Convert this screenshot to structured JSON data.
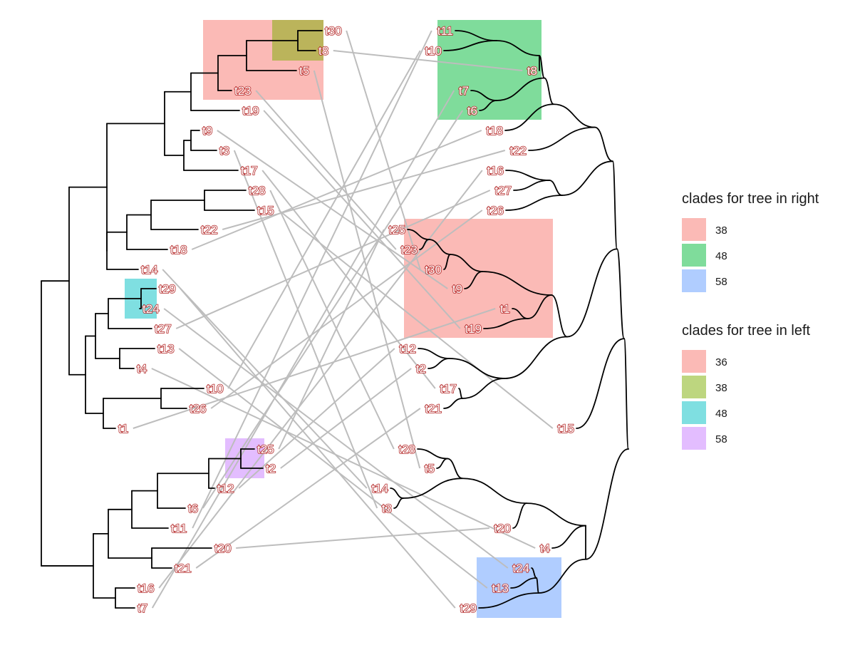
{
  "colors": {
    "c36_left": "#f8766d",
    "c38_left": "#7cae00",
    "c48_left": "#00bfc4",
    "c58_left": "#c77cff",
    "c38_right": "#f8766d",
    "c48_right": "#00ba38",
    "c58_right": "#619cff",
    "link": "#bdbdbd"
  },
  "legend_right": {
    "title": "clades for tree in right",
    "items": [
      {
        "label": "38",
        "color": "#f8766d"
      },
      {
        "label": "48",
        "color": "#00ba38"
      },
      {
        "label": "58",
        "color": "#619cff"
      }
    ]
  },
  "legend_left": {
    "title": "clades for tree in left",
    "items": [
      {
        "label": "36",
        "color": "#f8766d"
      },
      {
        "label": "38",
        "color": "#7cae00"
      },
      {
        "label": "48",
        "color": "#00bfc4"
      },
      {
        "label": "58",
        "color": "#c77cff"
      }
    ]
  },
  "left_tips": [
    "t30",
    "t8",
    "t5",
    "t23",
    "t19",
    "t9",
    "t3",
    "t17",
    "t28",
    "t15",
    "t22",
    "t18",
    "t14",
    "t29",
    "t24",
    "t27",
    "t13",
    "t4",
    "t10",
    "t26",
    "t1",
    "t25",
    "t2",
    "t12",
    "t6",
    "t11",
    "t20",
    "t21",
    "t16",
    "t7"
  ],
  "right_tips": [
    "t11",
    "t10",
    "t8",
    "t7",
    "t6",
    "t18",
    "t22",
    "t16",
    "t27",
    "t26",
    "t25",
    "t23",
    "t30",
    "t9",
    "t1",
    "t19",
    "t12",
    "t2",
    "t17",
    "t21",
    "t15",
    "t28",
    "t5",
    "t14",
    "t3",
    "t20",
    "t4",
    "t24",
    "t13",
    "t29"
  ]
}
